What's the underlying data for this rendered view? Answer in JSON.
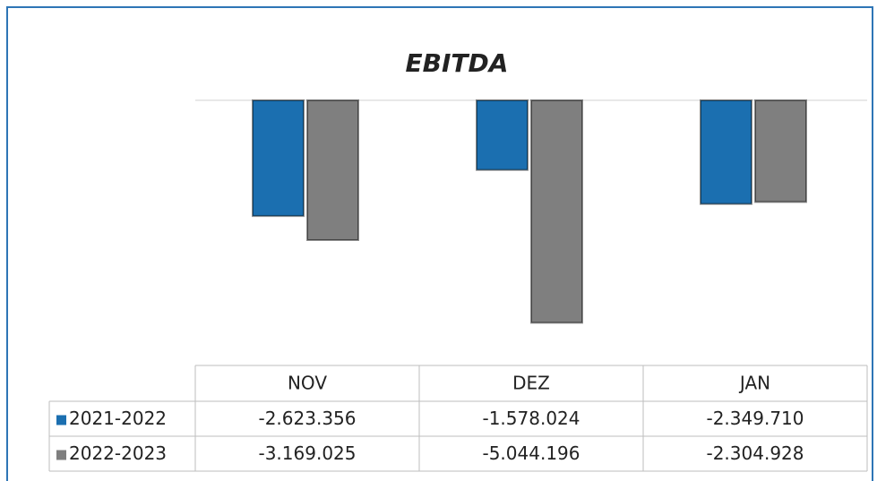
{
  "chart_data": {
    "type": "bar",
    "title": "EBITDA",
    "categories": [
      "NOV",
      "DEZ",
      "JAN"
    ],
    "series": [
      {
        "name": "2021-2022",
        "color": "#1b6fb0",
        "values": [
          -2623356,
          -1578024,
          -2349710
        ],
        "value_labels": [
          "-2.623.356",
          "-1.578.024",
          "-2.349.710"
        ]
      },
      {
        "name": "2022-2023",
        "color": "#7f7f7f",
        "values": [
          -3169025,
          -5044196,
          -2304928
        ],
        "value_labels": [
          "-3.169.025",
          "-5.044.196",
          "-2.304.928"
        ]
      }
    ],
    "ylim": [
      -5850000,
      0
    ],
    "data_table": true
  }
}
